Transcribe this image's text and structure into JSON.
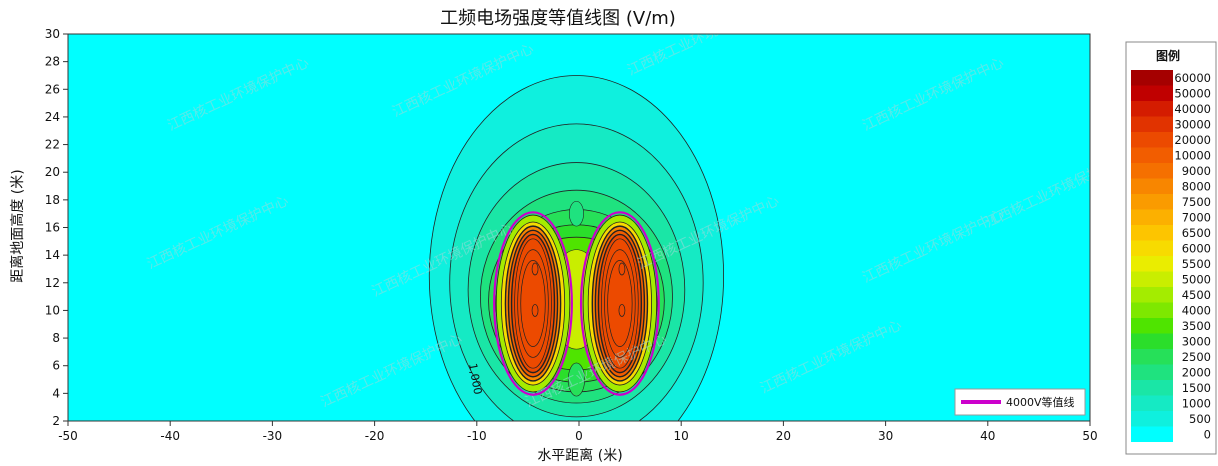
{
  "chart_data": {
    "type": "heatmap",
    "title": "工频电场强度等值线图 (V/m)",
    "xlabel": "水平距离 (米)",
    "ylabel": "距离地面高度 (米)",
    "xlim": [
      -50,
      50
    ],
    "ylim": [
      2,
      30
    ],
    "x_ticks": [
      "-50",
      "-40",
      "-30",
      "-20",
      "-10",
      "0",
      "10",
      "20",
      "30",
      "40",
      "50"
    ],
    "y_ticks": [
      "2",
      "4",
      "6",
      "8",
      "10",
      "12",
      "14",
      "16",
      "18",
      "20",
      "22",
      "24",
      "26",
      "28",
      "30"
    ],
    "grid": false,
    "legend": {
      "title": "图例",
      "placement": "right",
      "levels": [
        {
          "label": "60000",
          "color": "#a50000"
        },
        {
          "label": "50000",
          "color": "#c00000"
        },
        {
          "label": "40000",
          "color": "#d41c00"
        },
        {
          "label": "30000",
          "color": "#e13300"
        },
        {
          "label": "20000",
          "color": "#ec4a00"
        },
        {
          "label": "10000",
          "color": "#f25d00"
        },
        {
          "label": "9000",
          "color": "#f57000"
        },
        {
          "label": "8000",
          "color": "#f88600"
        },
        {
          "label": "7500",
          "color": "#fa9b00"
        },
        {
          "label": "7000",
          "color": "#fcb000"
        },
        {
          "label": "6500",
          "color": "#fdc500"
        },
        {
          "label": "6000",
          "color": "#f7db00"
        },
        {
          "label": "5500",
          "color": "#eaed00"
        },
        {
          "label": "5000",
          "color": "#c9ee00"
        },
        {
          "label": "4500",
          "color": "#a4ec00"
        },
        {
          "label": "4000",
          "color": "#7ee800",
          "label_color": "#cc00cc"
        },
        {
          "label": "3500",
          "color": "#4fe400"
        },
        {
          "label": "3000",
          "color": "#2bde2b"
        },
        {
          "label": "2500",
          "color": "#26e059"
        },
        {
          "label": "2000",
          "color": "#1fe27f"
        },
        {
          "label": "1500",
          "color": "#1ae6a6"
        },
        {
          "label": "1000",
          "color": "#15eac4"
        },
        {
          "label": "500",
          "color": "#0ff0de"
        },
        {
          "label": "0",
          "color": "#00ffff"
        }
      ]
    },
    "sources": [
      {
        "x": -4.5,
        "y": 10.5
      },
      {
        "x": 4.0,
        "y": 10.5
      }
    ],
    "highlight_contour": {
      "value": 4000,
      "color": "#cc00cc",
      "label": "4000V等值线",
      "placement": "bottom-right"
    },
    "contour_annotation": {
      "text": "1,000",
      "x": -10.5,
      "y": 5.0
    },
    "colors": {
      "background": "#00ffff",
      "line": "#222222",
      "highlight": "#cc00cc"
    },
    "watermark": "江西核工业环境保护中心"
  }
}
